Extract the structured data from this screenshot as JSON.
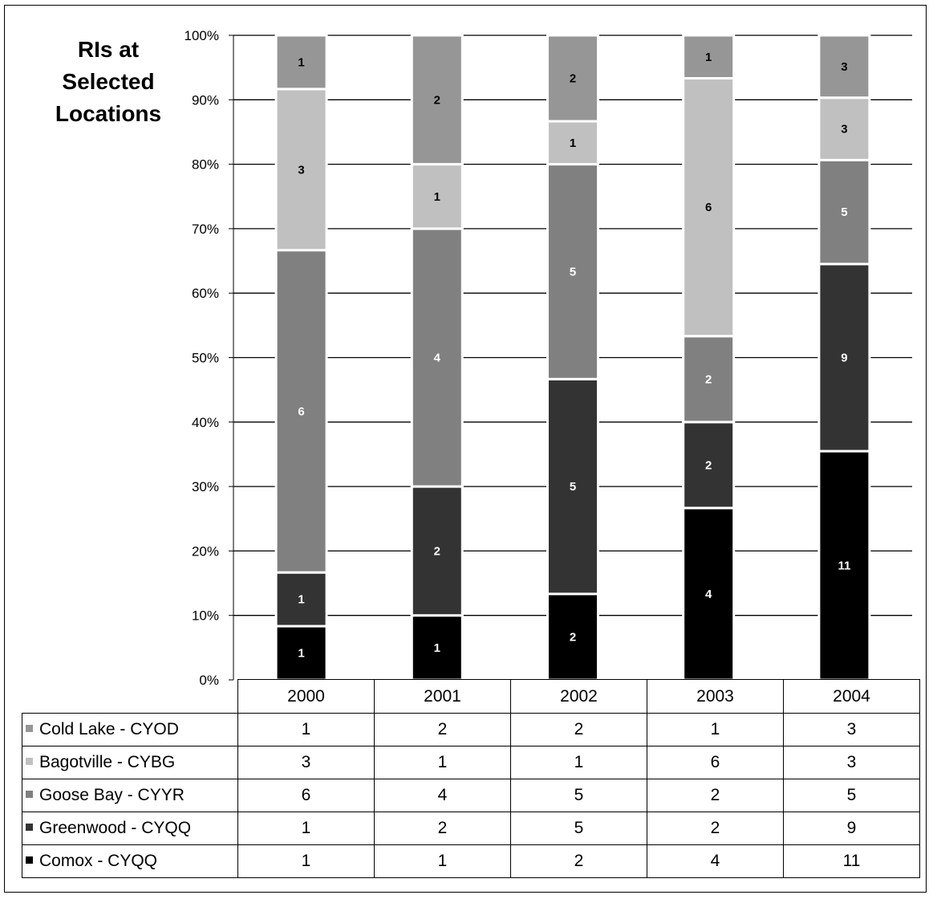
{
  "chart_data": {
    "type": "bar",
    "stacked": "percent",
    "title": "RIs at\nSelected\nLocations",
    "categories": [
      "2000",
      "2001",
      "2002",
      "2003",
      "2004"
    ],
    "y_ticks": [
      "0%",
      "10%",
      "20%",
      "30%",
      "40%",
      "50%",
      "60%",
      "70%",
      "80%",
      "90%",
      "100%"
    ],
    "ylim": [
      0,
      100
    ],
    "grid": true,
    "legend": "data-table-below",
    "series": [
      {
        "name": "Comox - CYQQ",
        "color": "#000000",
        "label_color": "#ffffff",
        "values": [
          1,
          1,
          2,
          4,
          11
        ]
      },
      {
        "name": "Greenwood - CYQQ",
        "color": "#333333",
        "label_color": "#ffffff",
        "values": [
          1,
          2,
          5,
          2,
          9
        ]
      },
      {
        "name": "Goose Bay - CYYR",
        "color": "#808080",
        "label_color": "#ffffff",
        "values": [
          6,
          4,
          5,
          2,
          5
        ]
      },
      {
        "name": "Bagotville - CYBG",
        "color": "#c0c0c0",
        "label_color": "#000000",
        "values": [
          3,
          1,
          1,
          6,
          3
        ]
      },
      {
        "name": "Cold Lake - CYOD",
        "color": "#969696",
        "label_color": "#000000",
        "values": [
          1,
          2,
          2,
          1,
          3
        ]
      }
    ],
    "table_rows_order": [
      4,
      3,
      2,
      1,
      0
    ]
  }
}
